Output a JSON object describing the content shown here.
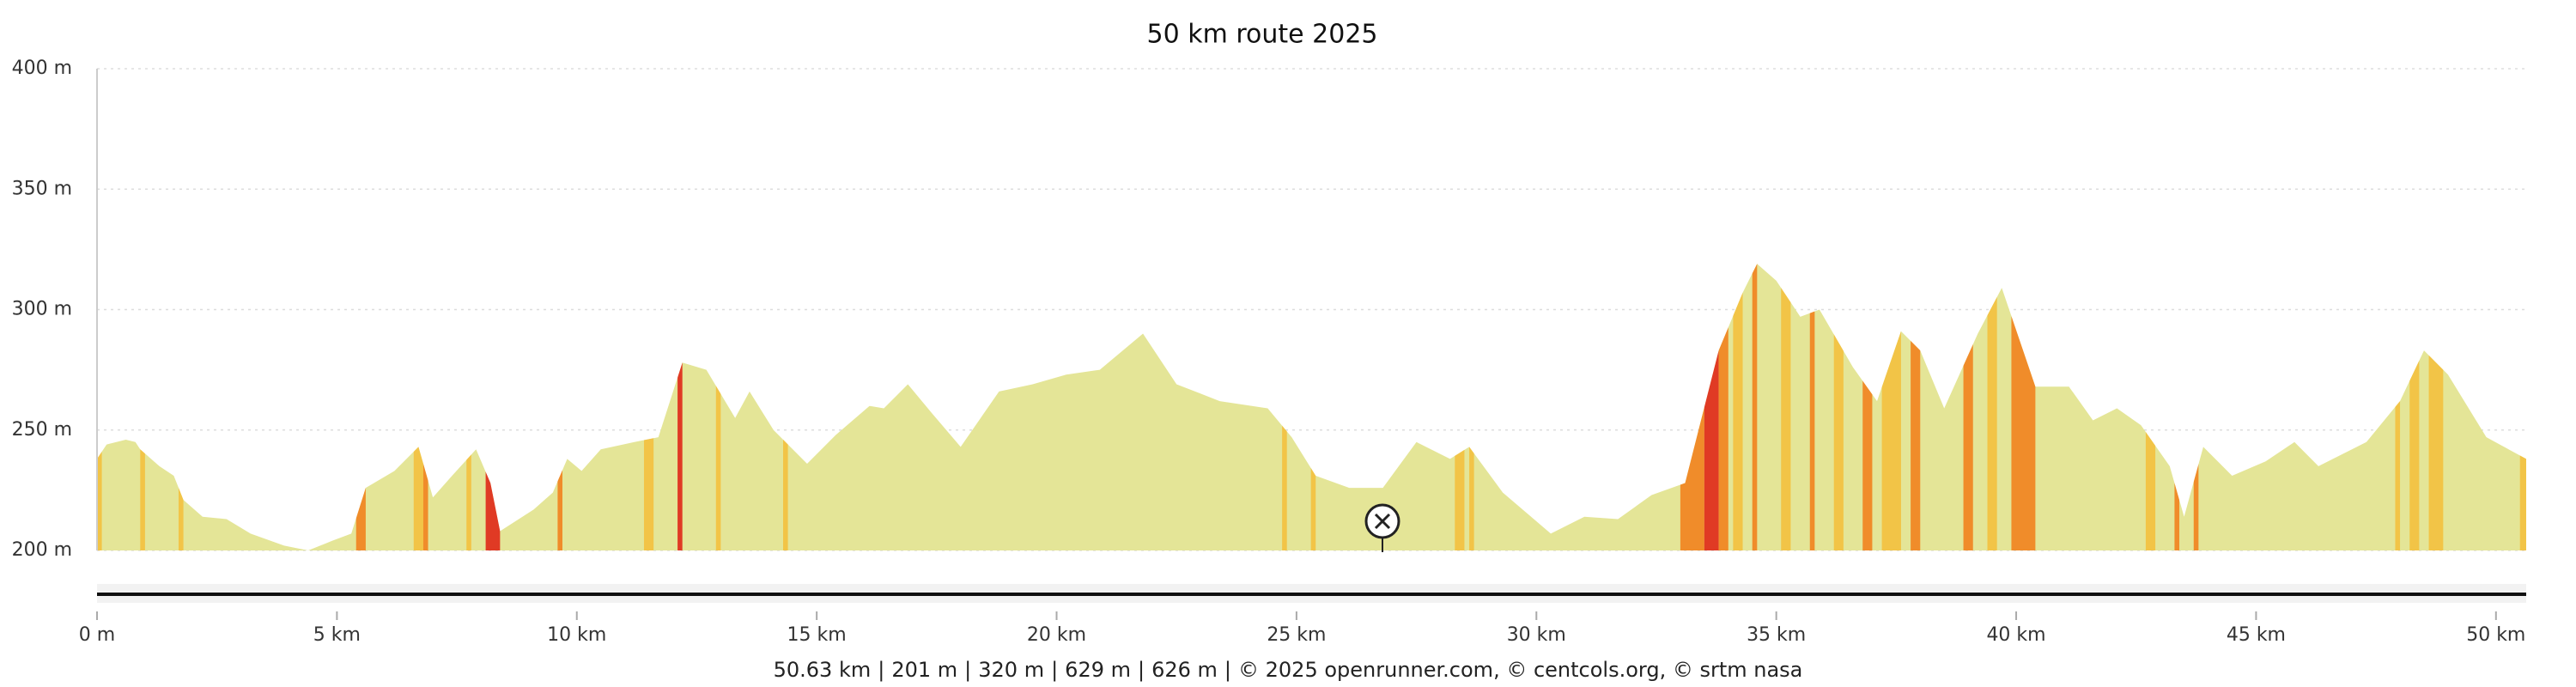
{
  "chart_data": {
    "type": "area",
    "title": "50 km route 2025",
    "x": [
      0,
      0.2,
      0.6,
      0.8,
      0.9,
      1.3,
      1.6,
      1.8,
      2.2,
      2.7,
      3.2,
      3.9,
      4.4,
      4.9,
      5.3,
      5.6,
      6.2,
      6.7,
      7.0,
      7.4,
      7.9,
      8.2,
      8.4,
      9.1,
      9.5,
      9.8,
      10.1,
      10.5,
      11.2,
      11.7,
      12.2,
      12.7,
      13.3,
      13.6,
      14.1,
      14.8,
      15.4,
      16.1,
      16.4,
      16.9,
      17.4,
      18.0,
      18.8,
      19.5,
      20.2,
      20.9,
      21.8,
      22.5,
      23.4,
      24.4,
      24.9,
      25.4,
      26.1,
      26.8,
      27.5,
      28.2,
      28.6,
      29.3,
      30.3,
      31.0,
      31.7,
      32.4,
      33.1,
      33.8,
      34.3,
      34.6,
      35.0,
      35.5,
      35.9,
      36.6,
      37.1,
      37.6,
      38.0,
      38.5,
      39.2,
      39.7,
      40.4,
      41.1,
      41.6,
      42.1,
      42.6,
      43.2,
      43.5,
      43.9,
      44.5,
      45.2,
      45.8,
      46.3,
      47.3,
      48.0,
      48.5,
      49.0,
      49.8,
      50.63
    ],
    "values": [
      238,
      244,
      246,
      245,
      242,
      235,
      231,
      221,
      214,
      213,
      207,
      202,
      200,
      204,
      207,
      226,
      233,
      243,
      222,
      231,
      242,
      228,
      208,
      217,
      224,
      238,
      233,
      242,
      245,
      247,
      278,
      275,
      255,
      266,
      250,
      236,
      248,
      260,
      259,
      269,
      257,
      243,
      266,
      269,
      273,
      275,
      290,
      269,
      262,
      259,
      247,
      231,
      226,
      226,
      245,
      238,
      243,
      224,
      207,
      214,
      213,
      223,
      228,
      283,
      307,
      319,
      312,
      297,
      300,
      276,
      262,
      291,
      283,
      259,
      290,
      309,
      268,
      268,
      254,
      259,
      252,
      235,
      214,
      243,
      231,
      237,
      245,
      235,
      245,
      262,
      283,
      273,
      247,
      238
    ],
    "color": "#e4e597",
    "grade_bands": [
      {
        "start": 0.0,
        "end": 0.1,
        "color": "#f2c447"
      },
      {
        "start": 0.9,
        "end": 1.0,
        "color": "#f2c447"
      },
      {
        "start": 1.7,
        "end": 1.8,
        "color": "#f2c447"
      },
      {
        "start": 5.4,
        "end": 5.6,
        "color": "#f08c2a"
      },
      {
        "start": 6.6,
        "end": 6.8,
        "color": "#f2c447"
      },
      {
        "start": 6.8,
        "end": 6.9,
        "color": "#f08c2a"
      },
      {
        "start": 7.7,
        "end": 7.8,
        "color": "#f2c447"
      },
      {
        "start": 8.1,
        "end": 8.4,
        "color": "#e03a24"
      },
      {
        "start": 9.6,
        "end": 9.7,
        "color": "#f08c2a"
      },
      {
        "start": 11.4,
        "end": 11.6,
        "color": "#f2c447"
      },
      {
        "start": 12.1,
        "end": 12.2,
        "color": "#e03a24"
      },
      {
        "start": 12.9,
        "end": 13.0,
        "color": "#f2c447"
      },
      {
        "start": 14.3,
        "end": 14.4,
        "color": "#f2c447"
      },
      {
        "start": 24.7,
        "end": 24.8,
        "color": "#f2c447"
      },
      {
        "start": 25.3,
        "end": 25.4,
        "color": "#f2c447"
      },
      {
        "start": 28.3,
        "end": 28.5,
        "color": "#f2c447"
      },
      {
        "start": 28.6,
        "end": 28.7,
        "color": "#f2c447"
      },
      {
        "start": 33.0,
        "end": 33.5,
        "color": "#f08c2a"
      },
      {
        "start": 33.5,
        "end": 33.8,
        "color": "#e03a24"
      },
      {
        "start": 33.8,
        "end": 34.0,
        "color": "#f08c2a"
      },
      {
        "start": 34.1,
        "end": 34.3,
        "color": "#f2c447"
      },
      {
        "start": 34.5,
        "end": 34.6,
        "color": "#f08c2a"
      },
      {
        "start": 35.1,
        "end": 35.3,
        "color": "#f2c447"
      },
      {
        "start": 35.7,
        "end": 35.8,
        "color": "#f08c2a"
      },
      {
        "start": 36.2,
        "end": 36.4,
        "color": "#f2c447"
      },
      {
        "start": 36.8,
        "end": 37.0,
        "color": "#f08c2a"
      },
      {
        "start": 37.2,
        "end": 37.6,
        "color": "#f2c447"
      },
      {
        "start": 37.8,
        "end": 38.0,
        "color": "#f08c2a"
      },
      {
        "start": 38.9,
        "end": 39.1,
        "color": "#f08c2a"
      },
      {
        "start": 39.4,
        "end": 39.6,
        "color": "#f2c447"
      },
      {
        "start": 39.9,
        "end": 40.4,
        "color": "#f08c2a"
      },
      {
        "start": 42.7,
        "end": 42.9,
        "color": "#f2c447"
      },
      {
        "start": 43.3,
        "end": 43.4,
        "color": "#f08c2a"
      },
      {
        "start": 43.7,
        "end": 43.8,
        "color": "#f08c2a"
      },
      {
        "start": 47.9,
        "end": 48.0,
        "color": "#f2c447"
      },
      {
        "start": 48.2,
        "end": 48.4,
        "color": "#f2c447"
      },
      {
        "start": 48.6,
        "end": 48.9,
        "color": "#f2c447"
      },
      {
        "start": 50.5,
        "end": 50.63,
        "color": "#f2c447"
      }
    ],
    "xlim": [
      0,
      50.63
    ],
    "ylim": [
      200,
      400
    ],
    "xticks": [
      {
        "value": 0,
        "label": "0 m"
      },
      {
        "value": 5,
        "label": "5 km"
      },
      {
        "value": 10,
        "label": "10 km"
      },
      {
        "value": 15,
        "label": "15 km"
      },
      {
        "value": 20,
        "label": "20 km"
      },
      {
        "value": 25,
        "label": "25 km"
      },
      {
        "value": 30,
        "label": "30 km"
      },
      {
        "value": 35,
        "label": "35 km"
      },
      {
        "value": 40,
        "label": "40 km"
      },
      {
        "value": 45,
        "label": "45 km"
      },
      {
        "value": 50,
        "label": "50 km"
      }
    ],
    "yticks": [
      {
        "value": 200,
        "label": "200 m"
      },
      {
        "value": 250,
        "label": "250 m"
      },
      {
        "value": 300,
        "label": "300 m"
      },
      {
        "value": 350,
        "label": "350 m"
      },
      {
        "value": 400,
        "label": "400 m"
      }
    ],
    "grid": true,
    "footer": {
      "stats": [
        "50.63 km",
        "201 m",
        "320 m",
        "629 m",
        "626 m"
      ],
      "separator": "|",
      "credits": "© 2025 openrunner.com, © centcols.org, © srtm nasa"
    }
  }
}
